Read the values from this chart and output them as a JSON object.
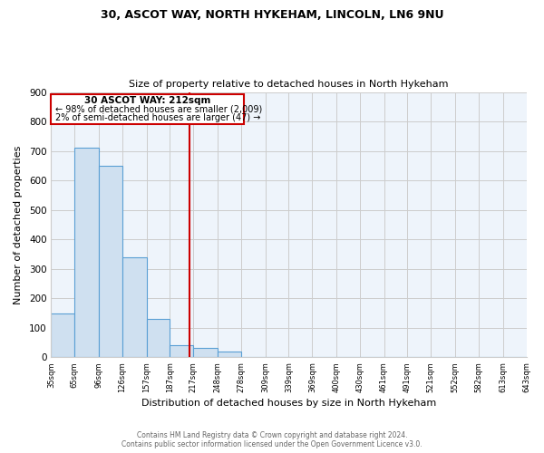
{
  "title_line1": "30, ASCOT WAY, NORTH HYKEHAM, LINCOLN, LN6 9NU",
  "title_line2": "Size of property relative to detached houses in North Hykeham",
  "xlabel": "Distribution of detached houses by size in North Hykeham",
  "ylabel": "Number of detached properties",
  "footer_line1": "Contains HM Land Registry data © Crown copyright and database right 2024.",
  "footer_line2": "Contains public sector information licensed under the Open Government Licence v3.0.",
  "bin_edges": [
    35,
    65,
    96,
    126,
    157,
    187,
    217,
    248,
    278,
    309,
    339,
    369,
    400,
    430,
    461,
    491,
    521,
    552,
    582,
    613,
    643
  ],
  "bar_heights": [
    150,
    712,
    650,
    338,
    130,
    42,
    32,
    18,
    2,
    0,
    2,
    0,
    0,
    0,
    0,
    0,
    0,
    0,
    0,
    0
  ],
  "bar_color": "#cfe0f0",
  "bar_edge_color": "#5a9fd4",
  "grid_color": "#cccccc",
  "bg_color": "#eef4fb",
  "vline_x": 212,
  "vline_color": "#cc0000",
  "ann_line1": "30 ASCOT WAY: 212sqm",
  "ann_line2": "← 98% of detached houses are smaller (2,009)",
  "ann_line3": "2% of semi-detached houses are larger (47) →",
  "annotation_box_color": "#cc0000",
  "ylim": [
    0,
    900
  ],
  "yticks": [
    0,
    100,
    200,
    300,
    400,
    500,
    600,
    700,
    800,
    900
  ],
  "tick_labels": [
    "35sqm",
    "65sqm",
    "96sqm",
    "126sqm",
    "157sqm",
    "187sqm",
    "217sqm",
    "248sqm",
    "278sqm",
    "309sqm",
    "339sqm",
    "369sqm",
    "400sqm",
    "430sqm",
    "461sqm",
    "491sqm",
    "521sqm",
    "552sqm",
    "582sqm",
    "613sqm",
    "643sqm"
  ]
}
